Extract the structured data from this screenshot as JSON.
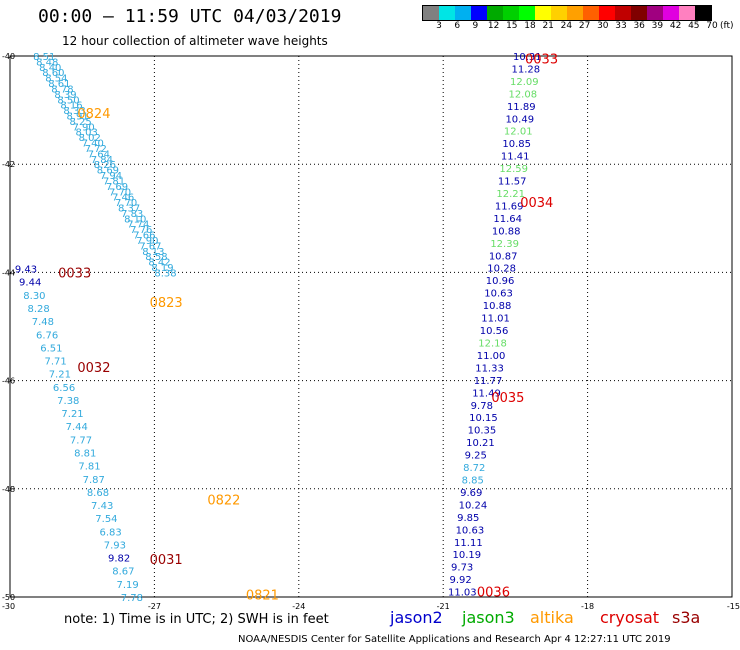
{
  "title": "00:00 – 11:59 UTC 04/03/2019",
  "subtitle": "12 hour collection of altimeter wave heights",
  "colorbar": {
    "unit": "(ft)",
    "colors": [
      "#808080",
      "#00e5e5",
      "#00b0f0",
      "#0000ff",
      "#00aa00",
      "#00d000",
      "#00ff00",
      "#ffff00",
      "#ffd000",
      "#ffa000",
      "#ff6000",
      "#ff0000",
      "#c00000",
      "#800000",
      "#a00080",
      "#e000e0",
      "#ff80c0",
      "#000000"
    ],
    "ticks": [
      "3",
      "6",
      "9",
      "12",
      "15",
      "18",
      "21",
      "24",
      "27",
      "30",
      "33",
      "36",
      "39",
      "42",
      "45",
      "70"
    ]
  },
  "lat_labels": [
    "-40",
    "-42",
    "-44",
    "-46",
    "-48",
    "-50"
  ],
  "lon_labels": [
    "-30",
    "-27",
    "-24",
    "-21",
    "-18",
    "-15"
  ],
  "note": "note: 1) Time is in UTC; 2) SWH is in feet",
  "credit": "NOAA/NESDIS Center for Satellite Applications and Research     Apr  4 12:27:11 UTC 2019",
  "satellites": [
    {
      "name": "jason2",
      "color": "#0000cc"
    },
    {
      "name": "jason3",
      "color": "#00aa00"
    },
    {
      "name": "altika",
      "color": "#ff9900"
    },
    {
      "name": "cryosat",
      "color": "#dd0000"
    },
    {
      "name": "s3a",
      "color": "#990000"
    }
  ],
  "tracks": [
    {
      "name": "left",
      "lon_start": -29.52,
      "lon_end": -27.0,
      "lat_start": -40.0,
      "lat_end": -44.0,
      "points": [
        {
          "v": "8.51",
          "c": "#33aadd"
        },
        {
          "v": "8.48",
          "c": "#33aadd"
        },
        {
          "v": "8.40",
          "c": "#33aadd"
        },
        {
          "v": "8.60",
          "c": "#33aadd"
        },
        {
          "v": "8.54",
          "c": "#33aadd"
        },
        {
          "v": "8.61",
          "c": "#33aadd"
        },
        {
          "v": "8.78",
          "c": "#33aadd"
        },
        {
          "v": "8.39",
          "c": "#33aadd"
        },
        {
          "v": "8.50",
          "c": "#33aadd"
        },
        {
          "v": "8.16",
          "c": "#33aadd"
        },
        {
          "v": "8.33",
          "c": "#33aadd"
        },
        {
          "v": "8.91",
          "c": "#33aadd"
        },
        {
          "v": "8.25",
          "c": "#33aadd"
        },
        {
          "v": "7.90",
          "c": "#33aadd"
        },
        {
          "v": "8.03",
          "c": "#33aadd"
        },
        {
          "v": "8.02",
          "c": "#33aadd"
        },
        {
          "v": "7.40",
          "c": "#33aadd"
        },
        {
          "v": "7.72",
          "c": "#33aadd"
        },
        {
          "v": "7.64",
          "c": "#33aadd"
        },
        {
          "v": "7.84",
          "c": "#33aadd"
        },
        {
          "v": "8.26",
          "c": "#33aadd"
        },
        {
          "v": "8.69",
          "c": "#33aadd"
        },
        {
          "v": "7.94",
          "c": "#33aadd"
        },
        {
          "v": "7.81",
          "c": "#33aadd"
        },
        {
          "v": "7.69",
          "c": "#33aadd"
        },
        {
          "v": "7.70",
          "c": "#33aadd"
        },
        {
          "v": "7.46",
          "c": "#33aadd"
        },
        {
          "v": "7.70",
          "c": "#33aadd"
        },
        {
          "v": "8.37",
          "c": "#33aadd"
        },
        {
          "v": "7.83",
          "c": "#33aadd"
        },
        {
          "v": "8.10",
          "c": "#33aadd"
        },
        {
          "v": "7.74",
          "c": "#33aadd"
        },
        {
          "v": "7.76",
          "c": "#33aadd"
        },
        {
          "v": "7.66",
          "c": "#33aadd"
        },
        {
          "v": "7.90",
          "c": "#33aadd"
        },
        {
          "v": "7.67",
          "c": "#33aadd"
        },
        {
          "v": "8.13",
          "c": "#33aadd"
        },
        {
          "v": "8.58",
          "c": "#33aadd"
        },
        {
          "v": "8.42",
          "c": "#33aadd"
        },
        {
          "v": "8.19",
          "c": "#33aadd"
        },
        {
          "v": "8.38",
          "c": "#33aadd"
        }
      ]
    },
    {
      "name": "mid",
      "lon_start": -29.9,
      "lon_end": -27.7,
      "lat_start": -43.93,
      "lat_end": -50.0,
      "points": [
        {
          "v": "9.43",
          "c": "#0000aa"
        },
        {
          "v": "9.44",
          "c": "#0000aa"
        },
        {
          "v": "8.30",
          "c": "#33aadd"
        },
        {
          "v": "8.28",
          "c": "#33aadd"
        },
        {
          "v": "7.48",
          "c": "#33aadd"
        },
        {
          "v": "6.76",
          "c": "#33aadd"
        },
        {
          "v": "6.51",
          "c": "#33aadd"
        },
        {
          "v": "7.71",
          "c": "#33aadd"
        },
        {
          "v": "7.21",
          "c": "#33aadd"
        },
        {
          "v": "6.56",
          "c": "#33aadd"
        },
        {
          "v": "7.38",
          "c": "#33aadd"
        },
        {
          "v": "7.21",
          "c": "#33aadd"
        },
        {
          "v": "7.44",
          "c": "#33aadd"
        },
        {
          "v": "7.77",
          "c": "#33aadd"
        },
        {
          "v": "8.81",
          "c": "#33aadd"
        },
        {
          "v": "7.81",
          "c": "#33aadd"
        },
        {
          "v": "7.87",
          "c": "#33aadd"
        },
        {
          "v": "8.68",
          "c": "#33aadd"
        },
        {
          "v": "7.43",
          "c": "#33aadd"
        },
        {
          "v": "7.54",
          "c": "#33aadd"
        },
        {
          "v": "6.83",
          "c": "#33aadd"
        },
        {
          "v": "7.93",
          "c": "#33aadd"
        },
        {
          "v": "9.82",
          "c": "#0000aa"
        },
        {
          "v": "8.67",
          "c": "#33aadd"
        },
        {
          "v": "7.19",
          "c": "#33aadd"
        },
        {
          "v": "7.78",
          "c": "#33aadd"
        }
      ]
    },
    {
      "name": "right",
      "lon_start": -19.55,
      "lon_end": -20.9,
      "lat_start": -40.0,
      "lat_end": -49.9,
      "points": [
        {
          "v": "10.31",
          "c": "#0000aa"
        },
        {
          "v": "11.28",
          "c": "#0000aa"
        },
        {
          "v": "12.09",
          "c": "#66dd66"
        },
        {
          "v": "12.08",
          "c": "#66dd66"
        },
        {
          "v": "11.89",
          "c": "#0000aa"
        },
        {
          "v": "10.49",
          "c": "#0000aa"
        },
        {
          "v": "12.01",
          "c": "#66dd66"
        },
        {
          "v": "10.85",
          "c": "#0000aa"
        },
        {
          "v": "11.41",
          "c": "#0000aa"
        },
        {
          "v": "12.59",
          "c": "#66dd66"
        },
        {
          "v": "11.57",
          "c": "#0000aa"
        },
        {
          "v": "12.21",
          "c": "#66dd66"
        },
        {
          "v": "11.69",
          "c": "#0000aa"
        },
        {
          "v": "11.64",
          "c": "#0000aa"
        },
        {
          "v": "10.88",
          "c": "#0000aa"
        },
        {
          "v": "12.39",
          "c": "#66dd66"
        },
        {
          "v": "10.87",
          "c": "#0000aa"
        },
        {
          "v": "10.28",
          "c": "#0000aa"
        },
        {
          "v": "10.96",
          "c": "#0000aa"
        },
        {
          "v": "10.63",
          "c": "#0000aa"
        },
        {
          "v": "10.88",
          "c": "#0000aa"
        },
        {
          "v": "11.01",
          "c": "#0000aa"
        },
        {
          "v": "10.56",
          "c": "#0000aa"
        },
        {
          "v": "12.18",
          "c": "#66dd66"
        },
        {
          "v": "11.00",
          "c": "#0000aa"
        },
        {
          "v": "11.33",
          "c": "#0000aa"
        },
        {
          "v": "11.77",
          "c": "#0000aa"
        },
        {
          "v": "11.49",
          "c": "#0000aa"
        },
        {
          "v": "9.78",
          "c": "#0000aa"
        },
        {
          "v": "10.15",
          "c": "#0000aa"
        },
        {
          "v": "10.35",
          "c": "#0000aa"
        },
        {
          "v": "10.21",
          "c": "#0000aa"
        },
        {
          "v": "9.25",
          "c": "#0000aa"
        },
        {
          "v": "8.72",
          "c": "#33aadd"
        },
        {
          "v": "8.85",
          "c": "#33aadd"
        },
        {
          "v": "9.69",
          "c": "#0000aa"
        },
        {
          "v": "10.24",
          "c": "#0000aa"
        },
        {
          "v": "9.85",
          "c": "#0000aa"
        },
        {
          "v": "10.63",
          "c": "#0000aa"
        },
        {
          "v": "11.11",
          "c": "#0000aa"
        },
        {
          "v": "10.19",
          "c": "#0000aa"
        },
        {
          "v": "9.73",
          "c": "#0000aa"
        },
        {
          "v": "9.92",
          "c": "#0000aa"
        },
        {
          "v": "11.03",
          "c": "#0000aa"
        }
      ]
    }
  ],
  "time_labels": [
    {
      "text": "0824",
      "color": "#ff9900",
      "lon": -28.6,
      "lat": -41.05
    },
    {
      "text": "0823",
      "color": "#ff9900",
      "lon": -27.1,
      "lat": -44.55
    },
    {
      "text": "0822",
      "color": "#ff9900",
      "lon": -25.9,
      "lat": -48.2
    },
    {
      "text": "0821",
      "color": "#ff9900",
      "lon": -25.1,
      "lat": -49.95
    },
    {
      "text": "0033",
      "color": "#990000",
      "lon": -29.0,
      "lat": -44.0
    },
    {
      "text": "0032",
      "color": "#990000",
      "lon": -28.6,
      "lat": -45.75
    },
    {
      "text": "0031",
      "color": "#990000",
      "lon": -27.1,
      "lat": -49.3
    },
    {
      "text": "0033",
      "color": "#dd0000",
      "lon": -19.3,
      "lat": -40.05
    },
    {
      "text": "0034",
      "color": "#dd0000",
      "lon": -19.4,
      "lat": -42.7
    },
    {
      "text": "0035",
      "color": "#dd0000",
      "lon": -20.0,
      "lat": -46.3
    },
    {
      "text": "0036",
      "color": "#dd0000",
      "lon": -20.3,
      "lat": -49.9
    }
  ]
}
